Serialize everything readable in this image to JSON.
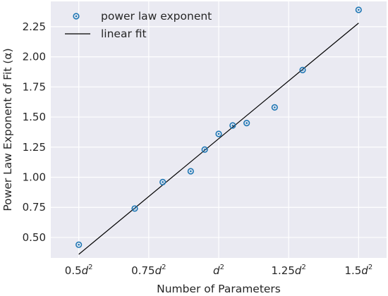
{
  "chart_data": {
    "type": "scatter",
    "title": "",
    "xlabel": "Number of Parameters",
    "ylabel": "Power Law Exponent of Fit (α)",
    "xlim": [
      0.4,
      1.6
    ],
    "ylim": [
      0.33,
      2.46
    ],
    "grid": true,
    "legend_position": "top-left",
    "x_ticks": [
      {
        "value": 0.5,
        "pre": "0.5",
        "var": "d",
        "sup": "2"
      },
      {
        "value": 0.75,
        "pre": "0.75",
        "var": "d",
        "sup": "2"
      },
      {
        "value": 1.0,
        "pre": "",
        "var": "d",
        "sup": "2"
      },
      {
        "value": 1.25,
        "pre": "1.25",
        "var": "d",
        "sup": "2"
      },
      {
        "value": 1.5,
        "pre": "1.5",
        "var": "d",
        "sup": "2"
      }
    ],
    "y_ticks": [
      {
        "value": 0.5,
        "label": "0.50"
      },
      {
        "value": 0.75,
        "label": "0.75"
      },
      {
        "value": 1.0,
        "label": "1.00"
      },
      {
        "value": 1.25,
        "label": "1.25"
      },
      {
        "value": 1.5,
        "label": "1.50"
      },
      {
        "value": 1.75,
        "label": "1.75"
      },
      {
        "value": 2.0,
        "label": "2.00"
      },
      {
        "value": 2.25,
        "label": "2.25"
      }
    ],
    "series": [
      {
        "name": "power law exponent",
        "kind": "scatter",
        "color": "#1f77b4",
        "x": [
          0.5,
          0.7,
          0.8,
          0.9,
          0.95,
          1.0,
          1.05,
          1.1,
          1.2,
          1.3,
          1.5
        ],
        "y": [
          0.44,
          0.74,
          0.96,
          1.05,
          1.23,
          1.36,
          1.43,
          1.45,
          1.58,
          1.89,
          2.39
        ]
      },
      {
        "name": "linear fit",
        "kind": "line",
        "color": "#000000",
        "x": [
          0.5,
          1.5
        ],
        "y": [
          0.36,
          2.28
        ]
      }
    ]
  }
}
